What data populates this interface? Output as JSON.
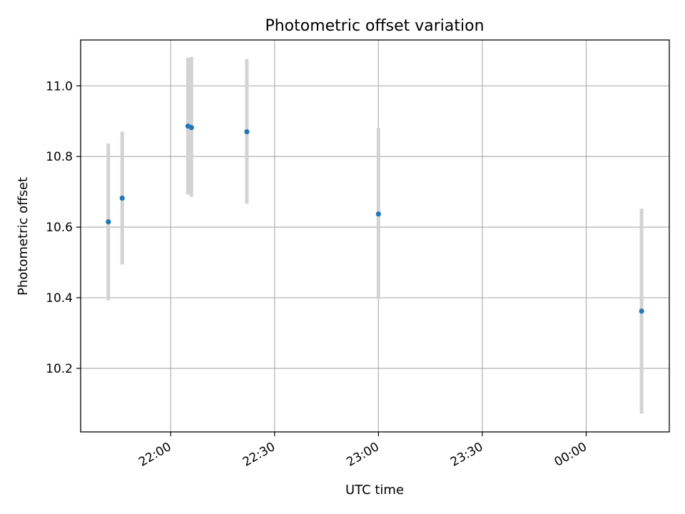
{
  "chart_data": {
    "type": "scatter",
    "title": "Photometric offset variation",
    "xlabel": "UTC time",
    "ylabel": "Photometric offset",
    "x_axis": {
      "kind": "time",
      "ticks": [
        "22:00",
        "22:30",
        "23:00",
        "23:30",
        "00:00"
      ],
      "range": [
        "21:34",
        "00:24"
      ]
    },
    "y_axis": {
      "ticks": [
        "10.2",
        "10.4",
        "10.6",
        "10.8",
        "11.0"
      ],
      "range": [
        10.02,
        11.13
      ]
    },
    "grid": true,
    "series": [
      {
        "x": [
          "21:42",
          "21:46",
          "22:05",
          "22:06",
          "22:22",
          "23:00",
          "00:16"
        ],
        "y": [
          10.615,
          10.682,
          10.886,
          10.882,
          10.87,
          10.637,
          10.362
        ],
        "y_lower": [
          10.393,
          10.494,
          10.692,
          10.686,
          10.666,
          10.396,
          10.072
        ],
        "y_upper": [
          10.837,
          10.87,
          11.08,
          11.082,
          11.076,
          10.881,
          10.652
        ]
      }
    ],
    "colors": {
      "marker": "#1f77b4",
      "errorbar": "#d3d3d3",
      "grid": "#b0b0b0"
    }
  }
}
